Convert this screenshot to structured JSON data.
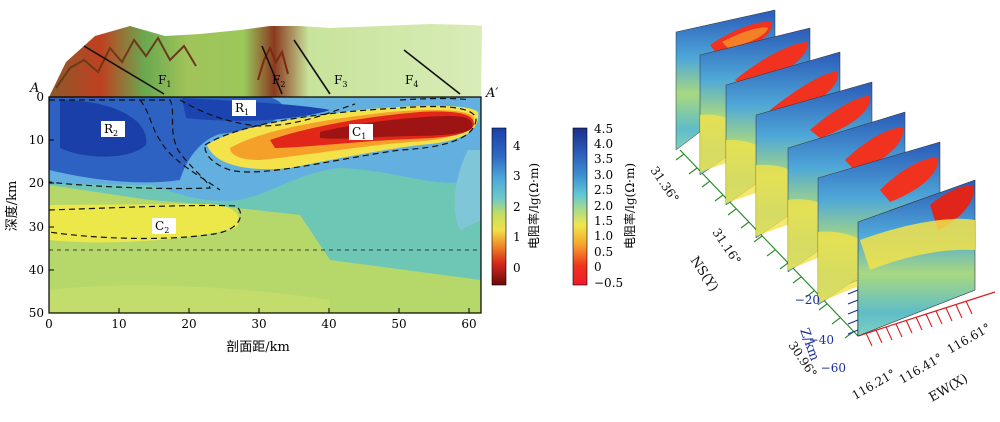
{
  "section": {
    "profile_start": "A",
    "profile_end": "A′",
    "faults": [
      {
        "name": "F",
        "sub": "1"
      },
      {
        "name": "F",
        "sub": "2"
      },
      {
        "name": "F",
        "sub": "3"
      },
      {
        "name": "F",
        "sub": "4"
      }
    ],
    "anomalies": [
      {
        "name": "R",
        "sub": "1"
      },
      {
        "name": "R",
        "sub": "2"
      },
      {
        "name": "C",
        "sub": "1"
      },
      {
        "name": "C",
        "sub": "2"
      }
    ],
    "y_ticks": [
      "0",
      "10",
      "20",
      "30",
      "40",
      "50"
    ],
    "x_ticks": [
      "0",
      "10",
      "20",
      "30",
      "40",
      "50",
      "60"
    ],
    "ylabel": "深度/km",
    "xlabel": "剖面距/km"
  },
  "colorbar_2d": {
    "ticks": [
      "4",
      "3",
      "2",
      "1",
      "0"
    ],
    "label": "电阻率/lg(Ω·m)"
  },
  "colorbar_3d": {
    "ticks": [
      "4.5",
      "4.0",
      "3.5",
      "3.0",
      "2.5",
      "2.0",
      "1.5",
      "1.0",
      "0.5",
      "0",
      "−0.5"
    ],
    "label": "电阻率/lg(Ω·m)"
  },
  "cube": {
    "ns_ticks": [
      "31.36°",
      "31.16°",
      "30.96°"
    ],
    "ns_label": "NS(Y)",
    "ew_ticks": [
      "116.21°",
      "116.41°",
      "116.61°"
    ],
    "ew_label": "EW(X)",
    "z_ticks": [
      "−20",
      "−40",
      "−60"
    ],
    "z_label": "Z/km"
  },
  "colors": {
    "high_resistivity": "#1a3fa8",
    "mid_resistivity": "#5ec2d8",
    "transition": "#c8e05a",
    "low_resistivity": "#e8261a",
    "very_low": "#7a0e0e",
    "ns_axis": "#2e8b2e",
    "ew_axis": "#d42020",
    "z_axis": "#1a2f9a"
  }
}
